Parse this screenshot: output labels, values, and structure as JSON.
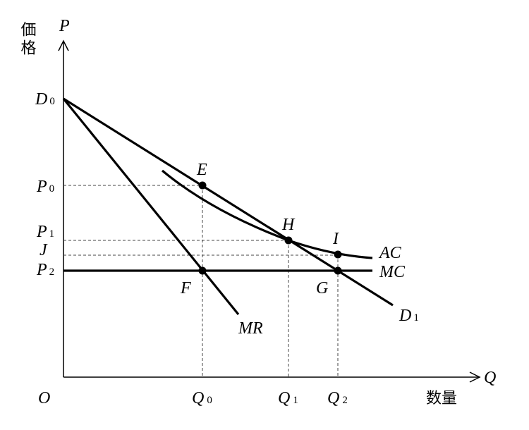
{
  "axes": {
    "y_label": "価格",
    "y_symbol": "P",
    "x_label": "数量",
    "x_symbol": "Q",
    "origin": "O"
  },
  "y_levels": [
    {
      "text": "D",
      "sub": "0"
    },
    {
      "text": "P",
      "sub": "0"
    },
    {
      "text": "P",
      "sub": "1"
    },
    {
      "text": "J"
    },
    {
      "text": "P",
      "sub": "2"
    }
  ],
  "x_levels": [
    {
      "text": "Q",
      "sub": "0"
    },
    {
      "text": "Q",
      "sub": "1"
    },
    {
      "text": "Q",
      "sub": "2"
    }
  ],
  "points": [
    "E",
    "H",
    "I",
    "F",
    "G"
  ],
  "curves": [
    "AC",
    "MC",
    "MR",
    {
      "text": "D",
      "sub": "1"
    }
  ]
}
